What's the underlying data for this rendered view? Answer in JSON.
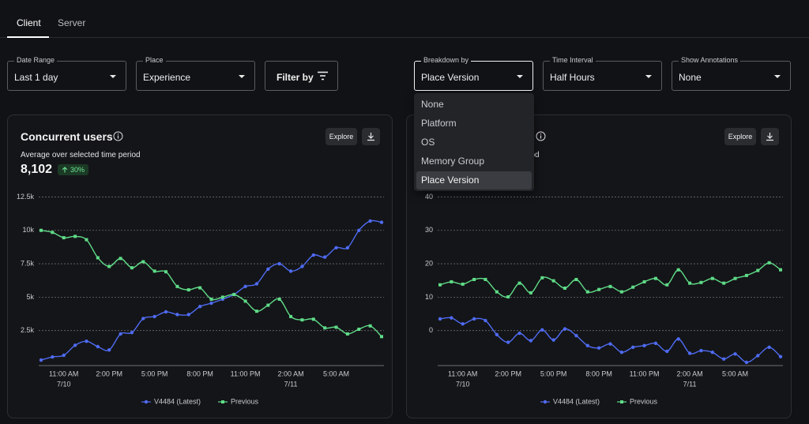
{
  "tabs": [
    {
      "label": "Client",
      "active": true
    },
    {
      "label": "Server",
      "active": false
    }
  ],
  "filters": [
    {
      "label": "Date Range",
      "value": "Last 1 day"
    },
    {
      "label": "Place",
      "value": "Experience"
    }
  ],
  "filter_button": "Filter by",
  "breakdown": [
    {
      "label": "Breakdown by",
      "value": "Place Version"
    },
    {
      "label": "Time Interval",
      "value": "Half Hours"
    },
    {
      "label": "Show Annotations",
      "value": "None"
    }
  ],
  "dropdown": {
    "options": [
      "None",
      "Platform",
      "OS",
      "Memory Group",
      "Place Version"
    ],
    "selected": 4
  },
  "panels": [
    {
      "title": "Concurrent users",
      "explore": "Explore",
      "subtitle": "Average over selected time period",
      "stat": "8,102",
      "change": "30%",
      "chart_data": {
        "type": "line",
        "categories": [
          null,
          null,
          [
            "11:00 AM",
            "7/10"
          ],
          null,
          null,
          null,
          "2:00 PM",
          null,
          null,
          null,
          "5:00 PM",
          null,
          null,
          null,
          "8:00 PM",
          null,
          null,
          null,
          "11:00 PM",
          null,
          null,
          null,
          [
            "2:00 AM",
            "7/11"
          ],
          null,
          null,
          null,
          "5:00 AM",
          null,
          null,
          null,
          null
        ],
        "series": [
          {
            "name": "V4484 (Latest)",
            "color": "#4f6bf2",
            "marker": "circle",
            "values": [
              295,
              530,
              650,
              1400,
              1700,
              1300,
              1050,
              2250,
              2350,
              3400,
              3550,
              3900,
              3700,
              3700,
              4300,
              4550,
              4850,
              5200,
              5800,
              6000,
              7100,
              7500,
              6950,
              7300,
              8150,
              8000,
              8700,
              8700,
              10000,
              10700,
              10600
            ]
          },
          {
            "name": "Previous",
            "color": "#5fdc88",
            "marker": "square",
            "values": [
              10000,
              9850,
              9450,
              9550,
              9300,
              7950,
              7300,
              7900,
              7200,
              7650,
              6950,
              6900,
              5800,
              5550,
              5700,
              4850,
              5000,
              5200,
              4700,
              3950,
              4400,
              4850,
              3550,
              3300,
              3350,
              2700,
              2750,
              2250,
              2600,
              2850,
              2050
            ]
          }
        ],
        "ylim": [
          0,
          13000
        ],
        "yticks": [
          {
            "value": 2500,
            "label": "2.5k"
          },
          {
            "value": 5000,
            "label": "5k"
          },
          {
            "value": 7500,
            "label": "7.5k"
          },
          {
            "value": 10000,
            "label": "10k"
          },
          {
            "value": 12500,
            "label": "12.5k"
          }
        ],
        "grid": true
      }
    },
    {
      "explore": "Explore",
      "subtitle": "Average over selected time period",
      "chart_data": {
        "type": "line",
        "categories": [
          null,
          null,
          [
            "11:00 AM",
            "7/10"
          ],
          null,
          null,
          null,
          "2:00 PM",
          null,
          null,
          null,
          "5:00 PM",
          null,
          null,
          null,
          "8:00 PM",
          null,
          null,
          null,
          "11:00 PM",
          null,
          null,
          null,
          [
            "2:00 AM",
            "7/11"
          ],
          null,
          null,
          null,
          "5:00 AM",
          null,
          null,
          null,
          null
        ],
        "series": [
          {
            "name": "V4484 (Latest)",
            "color": "#4f6bf2",
            "marker": "circle",
            "values": [
              3.5,
              3.8,
              2.0,
              3.5,
              3.0,
              -1.2,
              -3.5,
              -0.8,
              -3.0,
              0.2,
              -2.8,
              0.5,
              -1.5,
              -4.5,
              -5.2,
              -4.0,
              -6.5,
              -5.0,
              -4.5,
              -3.8,
              -6.2,
              -2.5,
              -6.8,
              -6.0,
              -6.5,
              -8.5,
              -7.0,
              -9.5,
              -7.5,
              -5.0,
              -7.8
            ]
          },
          {
            "name": "Previous",
            "color": "#5fdc88",
            "marker": "square",
            "values": [
              13.7,
              14.6,
              13.9,
              15.3,
              15.3,
              11.6,
              10.1,
              14.2,
              11.3,
              15.8,
              14.9,
              12.7,
              15.3,
              11.6,
              12.3,
              13.2,
              11.6,
              13.0,
              14.6,
              15.6,
              13.7,
              18.2,
              14.2,
              14.4,
              15.6,
              14.2,
              15.6,
              16.5,
              18.0,
              20.3,
              18.2
            ]
          }
        ],
        "ylim": [
          -10,
          42
        ],
        "yticks": [
          0,
          10,
          20,
          30,
          40
        ],
        "grid": true
      }
    }
  ]
}
